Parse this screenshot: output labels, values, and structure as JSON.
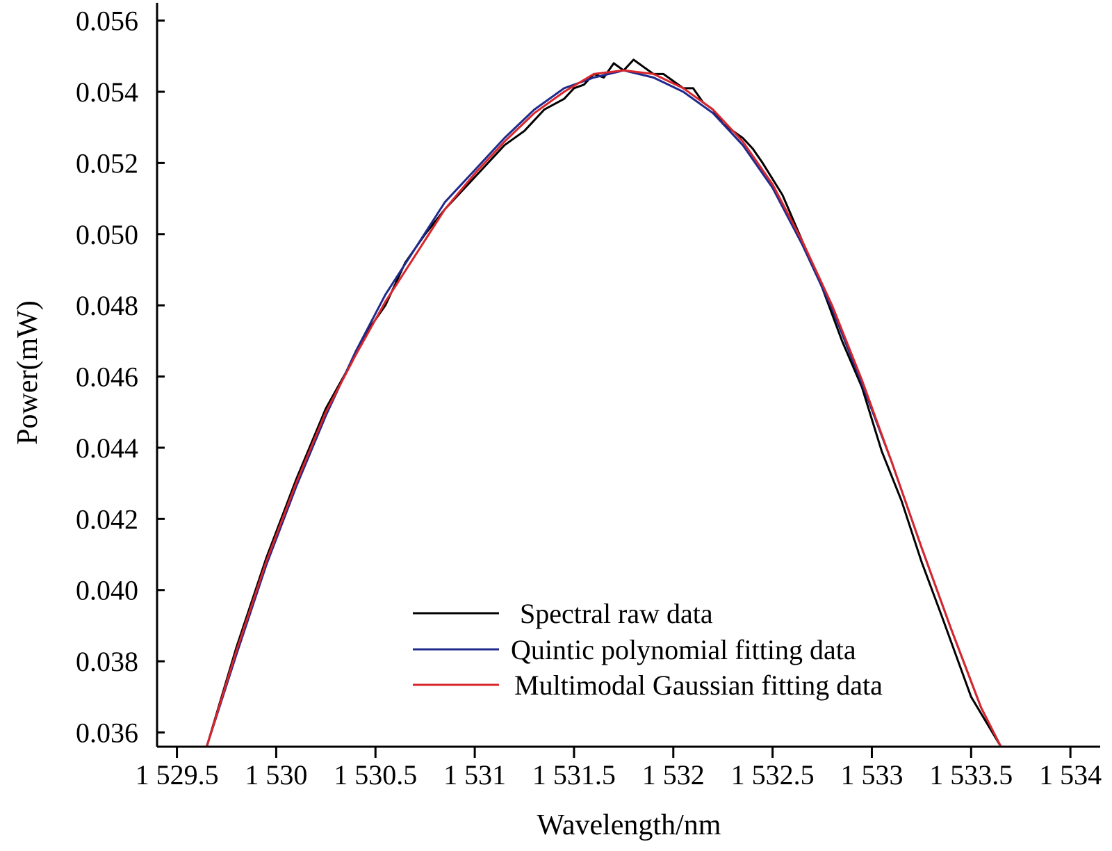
{
  "chart_data": {
    "type": "line",
    "title": "",
    "xlabel": "Wavelength/nm",
    "ylabel": "Power(mW)",
    "xlim": [
      1529.4,
      1534.15
    ],
    "ylim": [
      0.0356,
      0.0565
    ],
    "x_ticks": [
      1529.5,
      1530,
      1530.5,
      1531,
      1531.5,
      1532,
      1532.5,
      1533,
      1533.5,
      1534
    ],
    "x_tick_labels": [
      "1 529.5",
      "1 530",
      "1 530.5",
      "1 531",
      "1 531.5",
      "1 532",
      "1 532.5",
      "1 533",
      "1 533.5",
      "1 534"
    ],
    "y_ticks": [
      0.036,
      0.038,
      0.04,
      0.042,
      0.044,
      0.046,
      0.048,
      0.05,
      0.052,
      0.054,
      0.056
    ],
    "y_tick_labels": [
      "0.036",
      "0.038",
      "0.040",
      "0.042",
      "0.044",
      "0.046",
      "0.048",
      "0.050",
      "0.052",
      "0.054",
      "0.056"
    ],
    "grid": false,
    "legend_position": "bottom-center",
    "series": [
      {
        "name": "Spectral raw data",
        "color": "#000000",
        "x": [
          1529.65,
          1529.8,
          1529.95,
          1530.1,
          1530.25,
          1530.35,
          1530.45,
          1530.55,
          1530.65,
          1530.75,
          1530.85,
          1530.95,
          1531.05,
          1531.15,
          1531.25,
          1531.35,
          1531.45,
          1531.5,
          1531.55,
          1531.6,
          1531.65,
          1531.7,
          1531.75,
          1531.8,
          1531.85,
          1531.9,
          1531.95,
          1532.0,
          1532.05,
          1532.1,
          1532.15,
          1532.2,
          1532.25,
          1532.3,
          1532.35,
          1532.4,
          1532.45,
          1532.55,
          1532.65,
          1532.75,
          1532.85,
          1532.95,
          1533.05,
          1533.15,
          1533.25,
          1533.35,
          1533.5,
          1533.65
        ],
        "y": [
          0.0356,
          0.0384,
          0.0409,
          0.0431,
          0.0451,
          0.0461,
          0.0472,
          0.048,
          0.0492,
          0.05,
          0.0507,
          0.0513,
          0.0519,
          0.0525,
          0.0529,
          0.0535,
          0.0538,
          0.0541,
          0.0542,
          0.0545,
          0.0544,
          0.0548,
          0.0546,
          0.0549,
          0.0547,
          0.0545,
          0.0545,
          0.0543,
          0.0541,
          0.0541,
          0.0537,
          0.0535,
          0.0531,
          0.0529,
          0.0527,
          0.0524,
          0.052,
          0.0511,
          0.0498,
          0.0485,
          0.047,
          0.0457,
          0.0439,
          0.0425,
          0.0408,
          0.0393,
          0.037,
          0.0356
        ]
      },
      {
        "name": "Quintic polynomial fitting data",
        "color": "#1f2a8c",
        "x": [
          1529.65,
          1529.8,
          1529.95,
          1530.1,
          1530.25,
          1530.4,
          1530.55,
          1530.7,
          1530.85,
          1531.0,
          1531.15,
          1531.3,
          1531.45,
          1531.6,
          1531.75,
          1531.9,
          1532.05,
          1532.2,
          1532.35,
          1532.5,
          1532.65,
          1532.8,
          1532.95,
          1533.1,
          1533.25,
          1533.4,
          1533.55,
          1533.65
        ],
        "y": [
          0.0356,
          0.0382,
          0.0407,
          0.0429,
          0.0449,
          0.0467,
          0.0483,
          0.0496,
          0.0509,
          0.0518,
          0.0527,
          0.0535,
          0.0541,
          0.0544,
          0.0546,
          0.0544,
          0.054,
          0.0534,
          0.0525,
          0.0513,
          0.0497,
          0.0479,
          0.0458,
          0.0436,
          0.0412,
          0.0389,
          0.0367,
          0.0356
        ]
      },
      {
        "name": "Multimodal Gaussian fitting data",
        "color": "#d9262c",
        "x": [
          1529.65,
          1529.8,
          1529.95,
          1530.1,
          1530.25,
          1530.4,
          1530.55,
          1530.7,
          1530.85,
          1531.0,
          1531.15,
          1531.3,
          1531.45,
          1531.6,
          1531.75,
          1531.9,
          1532.05,
          1532.2,
          1532.35,
          1532.5,
          1532.65,
          1532.8,
          1532.95,
          1533.1,
          1533.25,
          1533.4,
          1533.55,
          1533.65
        ],
        "y": [
          0.0356,
          0.0383,
          0.0408,
          0.043,
          0.045,
          0.0466,
          0.0481,
          0.0494,
          0.0507,
          0.0517,
          0.0526,
          0.0534,
          0.054,
          0.0545,
          0.0546,
          0.0545,
          0.0541,
          0.0535,
          0.0526,
          0.0514,
          0.0498,
          0.048,
          0.0459,
          0.0436,
          0.0412,
          0.0389,
          0.0367,
          0.0356
        ]
      }
    ]
  }
}
